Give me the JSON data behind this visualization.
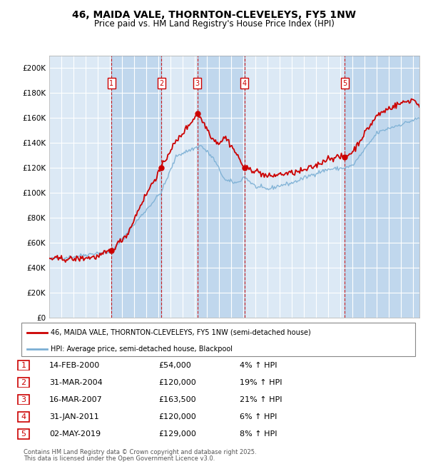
{
  "title": "46, MAIDA VALE, THORNTON-CLEVELEYS, FY5 1NW",
  "subtitle": "Price paid vs. HM Land Registry's House Price Index (HPI)",
  "xlim": [
    1995.0,
    2025.5
  ],
  "ylim": [
    0,
    210000
  ],
  "yticks": [
    0,
    20000,
    40000,
    60000,
    80000,
    100000,
    120000,
    140000,
    160000,
    180000,
    200000
  ],
  "ytick_labels": [
    "£0",
    "£20K",
    "£40K",
    "£60K",
    "£80K",
    "£100K",
    "£120K",
    "£140K",
    "£160K",
    "£180K",
    "£200K"
  ],
  "background_color": "#dce9f5",
  "grid_color": "#ffffff",
  "sale_dates_decimal": [
    2000.12,
    2004.25,
    2007.21,
    2011.08,
    2019.34
  ],
  "sale_prices": [
    54000,
    120000,
    163500,
    120000,
    129000
  ],
  "sale_labels": [
    "1",
    "2",
    "3",
    "4",
    "5"
  ],
  "sale_date_strings": [
    "14-FEB-2000",
    "31-MAR-2004",
    "16-MAR-2007",
    "31-JAN-2011",
    "02-MAY-2019"
  ],
  "sale_price_strings": [
    "£54,000",
    "£120,000",
    "£163,500",
    "£120,000",
    "£129,000"
  ],
  "sale_hpi_strings": [
    "4% ↑ HPI",
    "19% ↑ HPI",
    "21% ↑ HPI",
    "6% ↑ HPI",
    "8% ↑ HPI"
  ],
  "legend_line1": "46, MAIDA VALE, THORNTON-CLEVELEYS, FY5 1NW (semi-detached house)",
  "legend_line2": "HPI: Average price, semi-detached house, Blackpool",
  "footer_line1": "Contains HM Land Registry data © Crown copyright and database right 2025.",
  "footer_line2": "This data is licensed under the Open Government Licence v3.0.",
  "red_color": "#cc0000",
  "blue_color": "#7bafd4",
  "dot_color": "#cc0000"
}
